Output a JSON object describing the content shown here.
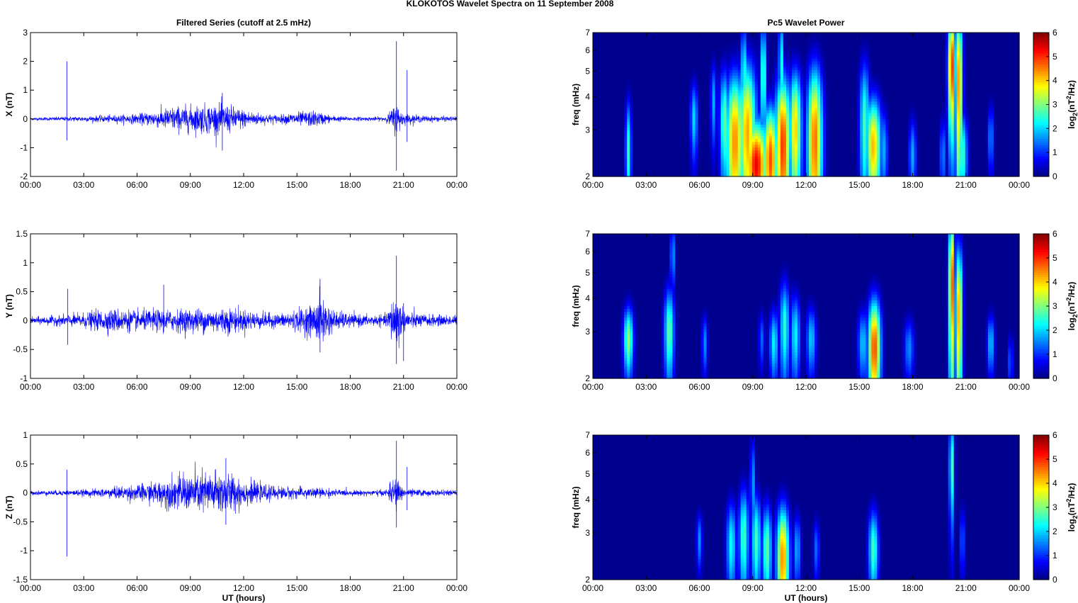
{
  "figure": {
    "suptitle": "KLOKOTOS Wavelet Spectra on 11 September 2008"
  },
  "chart_data": [
    {
      "type": "line",
      "panel": "timeseries-x",
      "title": "Filtered Series (cutoff at 2.5 mHz)",
      "ylabel": "X (nT)",
      "xlabel": "",
      "ylim": [
        -2,
        3
      ],
      "yticks": [
        -2,
        -1,
        0,
        1,
        2,
        3
      ],
      "ytick_labels": [
        "-2",
        "-1",
        "0",
        "1",
        "2",
        "3"
      ],
      "xlim_hours": [
        0,
        24
      ],
      "xticks_hours": [
        0,
        3,
        6,
        9,
        12,
        15,
        18,
        21,
        24
      ],
      "xtick_labels": [
        "00:00",
        "03:00",
        "06:00",
        "09:00",
        "12:00",
        "15:00",
        "18:00",
        "21:00",
        "00:00"
      ],
      "line_color": "#0000ff",
      "envelope": {
        "t_hours": [
          0,
          2,
          3,
          4,
          5,
          6,
          7,
          8,
          9,
          10,
          11,
          12,
          13,
          14,
          15,
          16,
          17,
          18,
          19,
          20,
          20.6,
          21,
          22,
          23,
          24
        ],
        "amplitude": [
          0.05,
          0.08,
          0.1,
          0.12,
          0.15,
          0.18,
          0.3,
          0.45,
          0.5,
          0.55,
          0.55,
          0.35,
          0.2,
          0.15,
          0.25,
          0.3,
          0.12,
          0.08,
          0.07,
          0.08,
          0.6,
          0.2,
          0.12,
          0.1,
          0.08
        ]
      },
      "spikes": [
        {
          "t_hours": 2.05,
          "high": 2.0,
          "low": -0.75
        },
        {
          "t_hours": 10.8,
          "high": 0.9,
          "low": -1.1
        },
        {
          "t_hours": 20.6,
          "high": 2.7,
          "low": -1.8
        },
        {
          "t_hours": 21.2,
          "high": 1.7,
          "low": -0.8
        }
      ]
    },
    {
      "type": "line",
      "panel": "timeseries-y",
      "title": "",
      "ylabel": "Y (nT)",
      "xlabel": "",
      "ylim": [
        -1,
        1.5
      ],
      "yticks": [
        -1,
        -0.5,
        0,
        0.5,
        1,
        1.5
      ],
      "ytick_labels": [
        "-1",
        "-0.5",
        "0",
        "0.5",
        "1",
        "1.5"
      ],
      "xlim_hours": [
        0,
        24
      ],
      "xticks_hours": [
        0,
        3,
        6,
        9,
        12,
        15,
        18,
        21,
        24
      ],
      "xtick_labels": [
        "00:00",
        "03:00",
        "06:00",
        "09:00",
        "12:00",
        "15:00",
        "18:00",
        "21:00",
        "00:00"
      ],
      "line_color": "#0000ff",
      "envelope": {
        "t_hours": [
          0,
          2,
          3,
          4,
          5,
          6,
          7,
          8,
          9,
          10,
          11,
          12,
          13,
          14,
          15,
          16,
          16.3,
          17,
          18,
          19,
          20,
          20.6,
          21,
          22,
          23,
          24
        ],
        "amplitude": [
          0.06,
          0.1,
          0.14,
          0.2,
          0.22,
          0.18,
          0.2,
          0.2,
          0.22,
          0.22,
          0.25,
          0.2,
          0.15,
          0.12,
          0.2,
          0.3,
          0.5,
          0.2,
          0.12,
          0.1,
          0.1,
          0.6,
          0.2,
          0.12,
          0.1,
          0.1
        ]
      },
      "spikes": [
        {
          "t_hours": 2.1,
          "high": 0.55,
          "low": -0.42
        },
        {
          "t_hours": 7.5,
          "high": 0.62,
          "low": -0.2
        },
        {
          "t_hours": 16.3,
          "high": 0.72,
          "low": -0.55
        },
        {
          "t_hours": 20.6,
          "high": 1.12,
          "low": -0.75
        },
        {
          "t_hours": 21.0,
          "high": 0.3,
          "low": -0.7
        }
      ]
    },
    {
      "type": "line",
      "panel": "timeseries-z",
      "title": "",
      "ylabel": "Z (nT)",
      "xlabel": "UT (hours)",
      "ylim": [
        -1.5,
        1
      ],
      "yticks": [
        -1.5,
        -1,
        -0.5,
        0,
        0.5,
        1
      ],
      "ytick_labels": [
        "-1.5",
        "-1",
        "-0.5",
        "0",
        "0.5",
        "1"
      ],
      "xlim_hours": [
        0,
        24
      ],
      "xticks_hours": [
        0,
        3,
        6,
        9,
        12,
        15,
        18,
        21,
        24
      ],
      "xtick_labels": [
        "00:00",
        "03:00",
        "06:00",
        "09:00",
        "12:00",
        "15:00",
        "18:00",
        "21:00",
        "00:00"
      ],
      "line_color": "#0000ff",
      "envelope": {
        "t_hours": [
          0,
          2,
          3,
          4,
          5,
          6,
          7,
          8,
          9,
          10,
          11,
          12,
          13,
          14,
          15,
          16,
          17,
          18,
          19,
          20,
          20.6,
          21,
          22,
          23,
          24
        ],
        "amplitude": [
          0.04,
          0.05,
          0.06,
          0.08,
          0.12,
          0.15,
          0.2,
          0.3,
          0.35,
          0.4,
          0.4,
          0.25,
          0.15,
          0.12,
          0.1,
          0.1,
          0.07,
          0.05,
          0.05,
          0.06,
          0.3,
          0.08,
          0.06,
          0.05,
          0.05
        ]
      },
      "spikes": [
        {
          "t_hours": 2.05,
          "high": 0.4,
          "low": -1.1
        },
        {
          "t_hours": 11.0,
          "high": 0.6,
          "low": -0.55
        },
        {
          "t_hours": 20.6,
          "high": 0.9,
          "low": -0.6
        },
        {
          "t_hours": 21.2,
          "high": 0.45,
          "low": -0.3
        }
      ]
    },
    {
      "type": "heatmap",
      "panel": "wavelet-x",
      "title": "Pc5 Wavelet Power",
      "ylabel": "freq (mHz)",
      "xlabel": "",
      "y_scale": "log",
      "ylim_mHz": [
        2,
        7
      ],
      "yticks_mHz": [
        2,
        3,
        4,
        5,
        6,
        7
      ],
      "ytick_labels": [
        "2",
        "3",
        "4",
        "5",
        "6",
        "7"
      ],
      "xlim_hours": [
        0,
        24
      ],
      "xticks_hours": [
        0,
        3,
        6,
        9,
        12,
        15,
        18,
        21,
        24
      ],
      "xtick_labels": [
        "00:00",
        "03:00",
        "06:00",
        "09:00",
        "12:00",
        "15:00",
        "18:00",
        "21:00",
        "00:00"
      ],
      "colorbar": {
        "label": "log2(nT2/Hz)",
        "range": [
          0,
          6
        ],
        "ticks": [
          0,
          1,
          2,
          3,
          4,
          5,
          6
        ],
        "tick_labels": [
          "0",
          "1",
          "2",
          "3",
          "4",
          "5",
          "6"
        ],
        "colormap": "jet"
      },
      "blobs": [
        {
          "t": 2.0,
          "f": 2.5,
          "w": 0.12,
          "h": 0.9,
          "p": 2.8
        },
        {
          "t": 5.7,
          "f": 3.3,
          "w": 0.15,
          "h": 0.8,
          "p": 2.3
        },
        {
          "t": 6.8,
          "f": 3.8,
          "w": 0.12,
          "h": 1.0,
          "p": 2.0
        },
        {
          "t": 7.4,
          "f": 3.2,
          "w": 0.18,
          "h": 1.2,
          "p": 3.2
        },
        {
          "t": 8.0,
          "f": 2.7,
          "w": 0.35,
          "h": 1.4,
          "p": 5.0
        },
        {
          "t": 8.7,
          "f": 2.9,
          "w": 0.35,
          "h": 1.6,
          "p": 4.8
        },
        {
          "t": 9.2,
          "f": 2.2,
          "w": 0.45,
          "h": 0.7,
          "p": 6.0
        },
        {
          "t": 10.0,
          "f": 2.3,
          "w": 0.3,
          "h": 0.9,
          "p": 5.4
        },
        {
          "t": 10.7,
          "f": 2.6,
          "w": 0.3,
          "h": 1.4,
          "p": 5.6
        },
        {
          "t": 11.4,
          "f": 3.0,
          "w": 0.25,
          "h": 1.3,
          "p": 4.5
        },
        {
          "t": 12.5,
          "f": 2.7,
          "w": 0.3,
          "h": 1.6,
          "p": 5.2
        },
        {
          "t": 8.5,
          "f": 4.6,
          "w": 0.12,
          "h": 1.8,
          "p": 3.0
        },
        {
          "t": 9.6,
          "f": 4.8,
          "w": 0.12,
          "h": 1.8,
          "p": 3.2
        },
        {
          "t": 10.6,
          "f": 5.2,
          "w": 0.1,
          "h": 2.0,
          "p": 2.8
        },
        {
          "t": 15.3,
          "f": 3.1,
          "w": 0.2,
          "h": 1.5,
          "p": 3.0
        },
        {
          "t": 15.8,
          "f": 2.6,
          "w": 0.3,
          "h": 0.9,
          "p": 4.7
        },
        {
          "t": 16.4,
          "f": 2.5,
          "w": 0.15,
          "h": 0.7,
          "p": 2.0
        },
        {
          "t": 18.0,
          "f": 2.4,
          "w": 0.15,
          "h": 0.6,
          "p": 2.0
        },
        {
          "t": 19.7,
          "f": 2.4,
          "w": 0.12,
          "h": 0.6,
          "p": 1.8
        },
        {
          "t": 20.2,
          "f": 5.2,
          "w": 0.15,
          "h": 2.0,
          "p": 5.7
        },
        {
          "t": 20.6,
          "f": 4.5,
          "w": 0.15,
          "h": 2.5,
          "p": 5.0
        },
        {
          "t": 20.8,
          "f": 2.4,
          "w": 0.2,
          "h": 0.7,
          "p": 3.0
        },
        {
          "t": 22.4,
          "f": 2.8,
          "w": 0.12,
          "h": 0.6,
          "p": 1.8
        }
      ]
    },
    {
      "type": "heatmap",
      "panel": "wavelet-y",
      "title": "",
      "ylabel": "freq (mHz)",
      "xlabel": "",
      "y_scale": "log",
      "ylim_mHz": [
        2,
        7
      ],
      "yticks_mHz": [
        2,
        3,
        4,
        5,
        6,
        7
      ],
      "ytick_labels": [
        "2",
        "3",
        "4",
        "5",
        "6",
        "7"
      ],
      "xlim_hours": [
        0,
        24
      ],
      "xticks_hours": [
        0,
        3,
        6,
        9,
        12,
        15,
        18,
        21,
        24
      ],
      "xtick_labels": [
        "00:00",
        "03:00",
        "06:00",
        "09:00",
        "12:00",
        "15:00",
        "18:00",
        "21:00",
        "00:00"
      ],
      "colorbar": {
        "label": "log2(nT2/Hz)",
        "range": [
          0,
          6
        ],
        "ticks": [
          0,
          1,
          2,
          3,
          4,
          5,
          6
        ],
        "tick_labels": [
          "0",
          "1",
          "2",
          "3",
          "4",
          "5",
          "6"
        ],
        "colormap": "jet"
      },
      "blobs": [
        {
          "t": 2.0,
          "f": 2.8,
          "w": 0.2,
          "h": 0.6,
          "p": 3.5
        },
        {
          "t": 4.3,
          "f": 3.0,
          "w": 0.2,
          "h": 0.9,
          "p": 3.2
        },
        {
          "t": 4.5,
          "f": 5.8,
          "w": 0.1,
          "h": 1.2,
          "p": 2.0
        },
        {
          "t": 6.3,
          "f": 2.7,
          "w": 0.12,
          "h": 0.5,
          "p": 1.8
        },
        {
          "t": 9.5,
          "f": 2.8,
          "w": 0.12,
          "h": 0.5,
          "p": 1.5
        },
        {
          "t": 10.2,
          "f": 2.7,
          "w": 0.18,
          "h": 0.6,
          "p": 2.5
        },
        {
          "t": 10.8,
          "f": 3.1,
          "w": 0.2,
          "h": 1.0,
          "p": 2.8
        },
        {
          "t": 11.4,
          "f": 2.9,
          "w": 0.2,
          "h": 0.8,
          "p": 2.5
        },
        {
          "t": 12.3,
          "f": 2.8,
          "w": 0.2,
          "h": 0.6,
          "p": 2.2
        },
        {
          "t": 15.2,
          "f": 2.7,
          "w": 0.2,
          "h": 0.6,
          "p": 2.2
        },
        {
          "t": 15.85,
          "f": 2.6,
          "w": 0.25,
          "h": 0.9,
          "p": 5.5
        },
        {
          "t": 17.8,
          "f": 2.6,
          "w": 0.2,
          "h": 0.5,
          "p": 1.8
        },
        {
          "t": 20.2,
          "f": 4.5,
          "w": 0.12,
          "h": 2.4,
          "p": 5.5
        },
        {
          "t": 20.6,
          "f": 3.5,
          "w": 0.15,
          "h": 1.8,
          "p": 4.8
        },
        {
          "t": 22.4,
          "f": 2.7,
          "w": 0.15,
          "h": 0.5,
          "p": 2.2
        },
        {
          "t": 23.5,
          "f": 2.3,
          "w": 0.1,
          "h": 0.4,
          "p": 1.5
        }
      ]
    },
    {
      "type": "heatmap",
      "panel": "wavelet-z",
      "title": "",
      "ylabel": "freq (mHz)",
      "xlabel": "UT (hours)",
      "y_scale": "log",
      "ylim_mHz": [
        2,
        7
      ],
      "yticks_mHz": [
        2,
        3,
        4,
        5,
        6,
        7
      ],
      "ytick_labels": [
        "2",
        "3",
        "4",
        "5",
        "6",
        "7"
      ],
      "xlim_hours": [
        0,
        24
      ],
      "xticks_hours": [
        0,
        3,
        6,
        9,
        12,
        15,
        18,
        21,
        24
      ],
      "xtick_labels": [
        "00:00",
        "03:00",
        "06:00",
        "09:00",
        "12:00",
        "15:00",
        "18:00",
        "21:00",
        "00:00"
      ],
      "colorbar": {
        "label": "log2(nT2/Hz)",
        "range": [
          0,
          6
        ],
        "ticks": [
          0,
          1,
          2,
          3,
          4,
          5,
          6
        ],
        "tick_labels": [
          "0",
          "1",
          "2",
          "3",
          "4",
          "5",
          "6"
        ],
        "colormap": "jet"
      },
      "blobs": [
        {
          "t": 6.0,
          "f": 2.8,
          "w": 0.12,
          "h": 0.5,
          "p": 1.8
        },
        {
          "t": 7.8,
          "f": 2.7,
          "w": 0.2,
          "h": 0.8,
          "p": 2.6
        },
        {
          "t": 8.5,
          "f": 2.9,
          "w": 0.2,
          "h": 1.0,
          "p": 3.0
        },
        {
          "t": 9.2,
          "f": 2.8,
          "w": 0.2,
          "h": 0.9,
          "p": 3.0
        },
        {
          "t": 9.8,
          "f": 2.6,
          "w": 0.2,
          "h": 0.8,
          "p": 3.2
        },
        {
          "t": 10.7,
          "f": 2.4,
          "w": 0.25,
          "h": 0.9,
          "p": 5.0
        },
        {
          "t": 11.5,
          "f": 2.6,
          "w": 0.15,
          "h": 0.6,
          "p": 2.0
        },
        {
          "t": 12.6,
          "f": 2.6,
          "w": 0.12,
          "h": 0.5,
          "p": 1.6
        },
        {
          "t": 9.0,
          "f": 4.5,
          "w": 0.1,
          "h": 1.5,
          "p": 2.0
        },
        {
          "t": 15.8,
          "f": 2.6,
          "w": 0.2,
          "h": 0.7,
          "p": 3.0
        },
        {
          "t": 20.2,
          "f": 5.3,
          "w": 0.1,
          "h": 1.8,
          "p": 3.2
        },
        {
          "t": 20.8,
          "f": 2.8,
          "w": 0.1,
          "h": 0.6,
          "p": 1.6
        }
      ]
    }
  ]
}
